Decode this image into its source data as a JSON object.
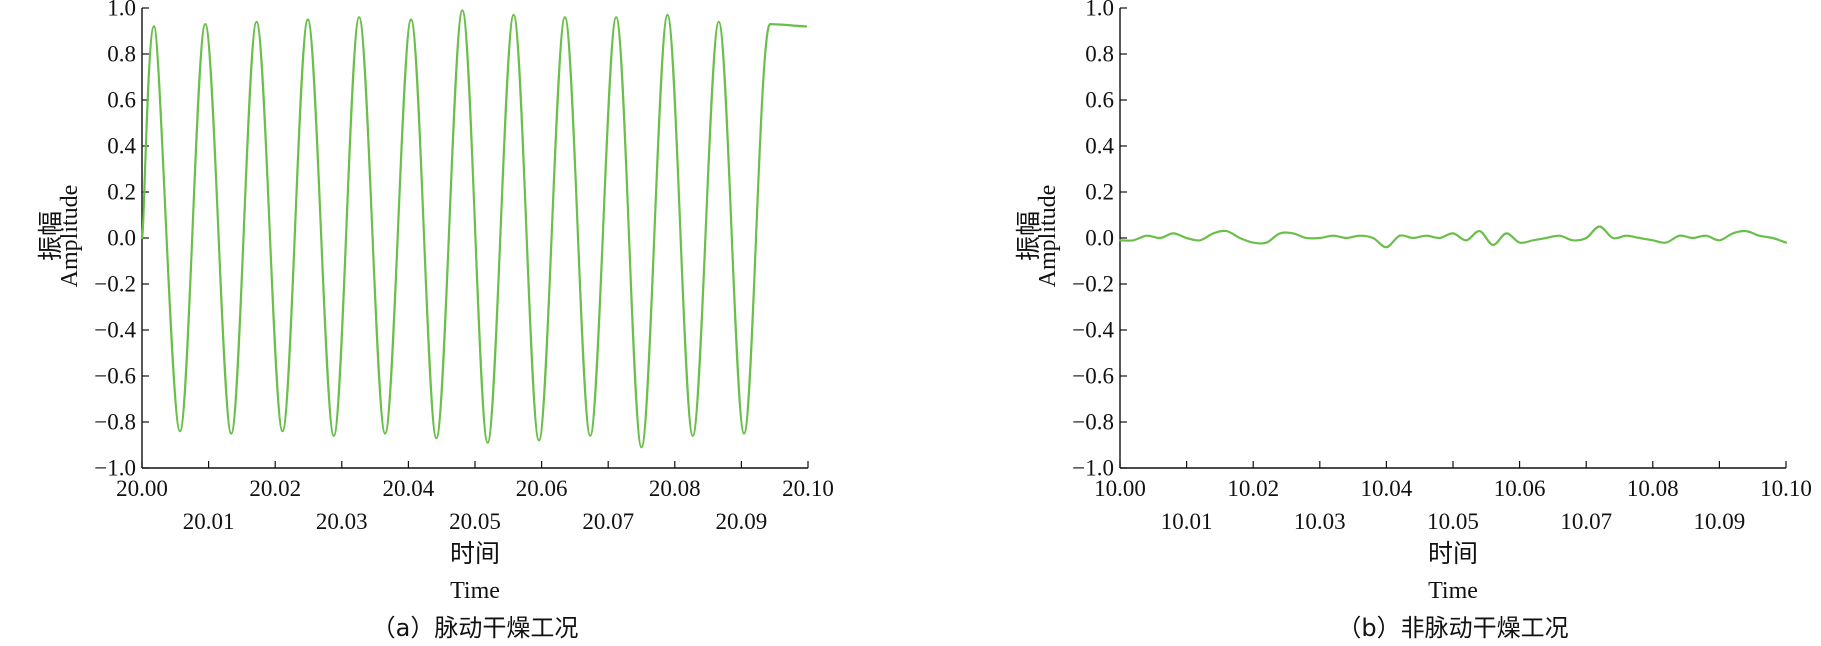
{
  "colors": {
    "series": "#6abf4b",
    "axis": "#111111"
  },
  "chart_data": [
    {
      "type": "line",
      "caption": "（a）脉动干燥工况",
      "xlabel": "时间",
      "xlabel_en": "Time",
      "ylabel": "振幅",
      "ylabel_en": "Amplitude",
      "xlim": [
        20.0,
        20.1
      ],
      "ylim": [
        -1.0,
        1.0
      ],
      "x_ticks_upper": [
        "20.00",
        "20.02",
        "20.04",
        "20.06",
        "20.08",
        "20.10"
      ],
      "x_ticks_lower": [
        "20.01",
        "20.03",
        "20.05",
        "20.07",
        "20.09"
      ],
      "y_ticks": [
        "1.0",
        "0.8",
        "0.6",
        "0.4",
        "0.2",
        "0.0",
        "−0.2",
        "−0.4",
        "−0.6",
        "−0.8",
        "−1.0"
      ],
      "grid": false,
      "series": [
        {
          "x": [
            20.0,
            20.0018,
            20.0057,
            20.0095,
            20.0134,
            20.0172,
            20.0211,
            20.0249,
            20.0288,
            20.0326,
            20.0365,
            20.0404,
            20.0442,
            20.0481,
            20.0519,
            20.0558,
            20.0596,
            20.0635,
            20.0673,
            20.0712,
            20.075,
            20.0789,
            20.0827,
            20.0866,
            20.0904,
            20.0943,
            20.0997
          ],
          "y": [
            0.0,
            0.92,
            -0.84,
            0.93,
            -0.85,
            0.94,
            -0.84,
            0.95,
            -0.86,
            0.96,
            -0.85,
            0.95,
            -0.87,
            0.99,
            -0.89,
            0.97,
            -0.88,
            0.96,
            -0.86,
            0.96,
            -0.91,
            0.97,
            -0.86,
            0.94,
            -0.85,
            0.93,
            0.92
          ]
        }
      ]
    },
    {
      "type": "line",
      "caption": "（b）非脉动干燥工况",
      "xlabel": "时间",
      "xlabel_en": "Time",
      "ylabel": "振幅",
      "ylabel_en": "Amplitude",
      "xlim": [
        10.0,
        10.1
      ],
      "ylim": [
        -1.0,
        1.0
      ],
      "x_ticks_upper": [
        "10.00",
        "10.02",
        "10.04",
        "10.06",
        "10.08",
        "10.10"
      ],
      "x_ticks_lower": [
        "10.01",
        "10.03",
        "10.05",
        "10.07",
        "10.09"
      ],
      "y_ticks": [
        "1.0",
        "0.8",
        "0.6",
        "0.4",
        "0.2",
        "0.0",
        "−0.2",
        "−0.4",
        "−0.6",
        "−0.8",
        "−1.0"
      ],
      "grid": false,
      "series": [
        {
          "x": [
            10.0,
            10.002,
            10.004,
            10.006,
            10.008,
            10.01,
            10.012,
            10.014,
            10.016,
            10.018,
            10.02,
            10.022,
            10.024,
            10.026,
            10.028,
            10.03,
            10.032,
            10.034,
            10.036,
            10.038,
            10.04,
            10.042,
            10.044,
            10.046,
            10.048,
            10.05,
            10.052,
            10.054,
            10.056,
            10.058,
            10.06,
            10.062,
            10.064,
            10.066,
            10.068,
            10.07,
            10.072,
            10.074,
            10.076,
            10.078,
            10.08,
            10.082,
            10.084,
            10.086,
            10.088,
            10.09,
            10.092,
            10.094,
            10.096,
            10.098,
            10.1
          ],
          "y": [
            -0.01,
            -0.01,
            0.01,
            0.0,
            0.02,
            0.0,
            -0.01,
            0.02,
            0.03,
            0.0,
            -0.02,
            -0.02,
            0.02,
            0.02,
            0.0,
            0.0,
            0.01,
            0.0,
            0.01,
            0.0,
            -0.04,
            0.01,
            0.0,
            0.01,
            0.0,
            0.02,
            -0.01,
            0.03,
            -0.03,
            0.02,
            -0.02,
            -0.01,
            0.0,
            0.01,
            -0.01,
            0.0,
            0.05,
            0.0,
            0.01,
            0.0,
            -0.01,
            -0.02,
            0.01,
            0.0,
            0.01,
            -0.01,
            0.02,
            0.03,
            0.01,
            0.0,
            -0.02
          ]
        }
      ]
    }
  ]
}
